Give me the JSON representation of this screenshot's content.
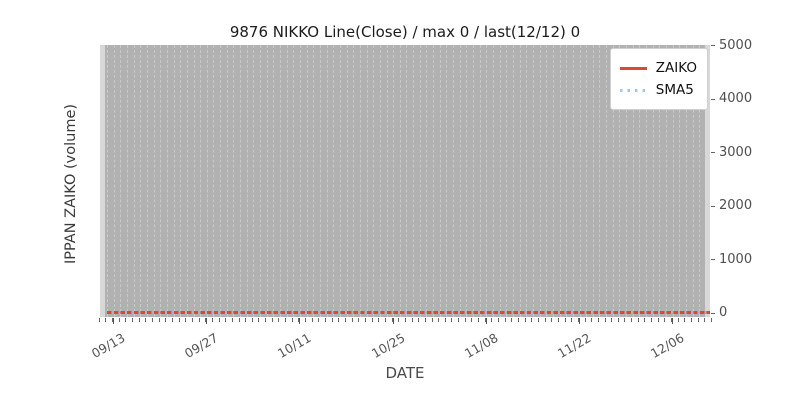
{
  "title": "9876 NIKKO Line(Close) / max 0 / last(12/12) 0",
  "xlabel": "DATE",
  "ylabel": "IPPAN ZAIKO (volume)",
  "x_major_ticks": [
    "09/13",
    "09/27",
    "10/11",
    "10/25",
    "11/08",
    "11/22",
    "12/06"
  ],
  "y_ticks": [
    "0",
    "1000",
    "2000",
    "3000",
    "4000",
    "5000"
  ],
  "legend": {
    "items": [
      {
        "label": "ZAIKO",
        "line_style": "solid",
        "color": "#d84a32"
      },
      {
        "label": "SMA5",
        "line_style": "dotted",
        "color": "#a5c8e1"
      }
    ]
  },
  "colors": {
    "figure_bg": "#ffffff",
    "plot_bg": "#d8d8d8",
    "data_band_bg": "#b1b1b1",
    "grid_dash": "#c9c9c9",
    "tick_mark": "#666666",
    "tick_label": "#555555",
    "zaiko_line": "#d84a32",
    "sma5_line": "#a5c8e1"
  },
  "chart_data": {
    "type": "line",
    "title": "9876 NIKKO Line(Close) / max 0 / last(12/12) 0",
    "xlabel": "DATE",
    "ylabel": "IPPAN ZAIKO (volume)",
    "x_range": [
      "09/13",
      "12/12"
    ],
    "x_tick_labels": [
      "09/13",
      "09/27",
      "10/11",
      "10/25",
      "11/08",
      "11/22",
      "12/06"
    ],
    "x_tick_interval": "14 days, daily minor ticks and daily dashed vertical gridlines",
    "ylim": [
      0,
      5000
    ],
    "y_ticks": [
      0,
      1000,
      2000,
      3000,
      4000,
      5000
    ],
    "y_axis_side": "right",
    "grid": "vertical dashed gridlines only, one per day, over gray band",
    "legend_position": "upper right",
    "series": [
      {
        "name": "ZAIKO",
        "color": "#d84a32",
        "line_style": "solid",
        "constant_value": 0,
        "values_at_ticks": [
          0,
          0,
          0,
          0,
          0,
          0,
          0
        ]
      },
      {
        "name": "SMA5",
        "color": "#a5c8e1",
        "line_style": "dotted",
        "constant_value": 0,
        "values_at_ticks": [
          0,
          0,
          0,
          0,
          0,
          0,
          0
        ]
      }
    ],
    "annotations": {
      "max": 0,
      "last_date": "12/12",
      "last_value": 0
    }
  }
}
